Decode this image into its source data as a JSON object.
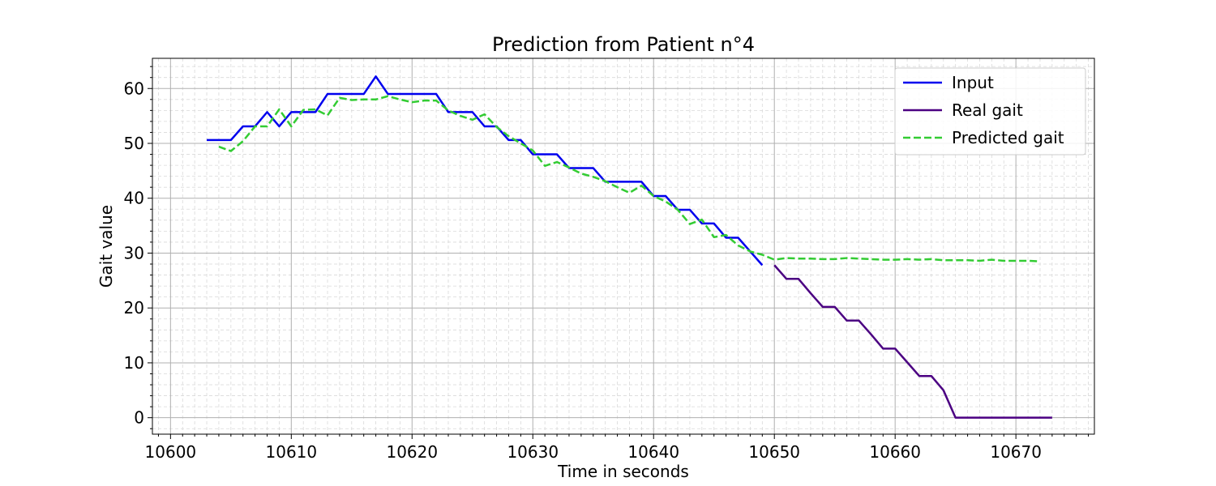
{
  "chart_data": {
    "type": "line",
    "title": "Prediction from Patient n°4",
    "xlabel": "Time in seconds",
    "ylabel": "Gait value",
    "xlim": [
      10598.5,
      10676.5
    ],
    "ylim": [
      -3,
      65.5
    ],
    "xticks": [
      10600,
      10610,
      10620,
      10630,
      10640,
      10650,
      10660,
      10670
    ],
    "yticks": [
      0,
      10,
      20,
      30,
      40,
      50,
      60
    ],
    "x_minor_step": 1,
    "y_minor_step": 2,
    "grid": true,
    "legend_position": "top-right",
    "series": [
      {
        "name": "Input",
        "color": "#0000ee",
        "style": "solid",
        "x": [
          10603,
          10604,
          10605,
          10606,
          10607,
          10608,
          10609,
          10610,
          10611,
          10612,
          10613,
          10614,
          10615,
          10616,
          10617,
          10618,
          10619,
          10620,
          10621,
          10622,
          10623,
          10624,
          10625,
          10626,
          10627,
          10628,
          10629,
          10630,
          10631,
          10632,
          10633,
          10634,
          10635,
          10636,
          10637,
          10638,
          10639,
          10640,
          10641,
          10642,
          10643,
          10644,
          10645,
          10646,
          10647,
          10648,
          10649
        ],
        "y": [
          50.6,
          50.6,
          50.6,
          53.1,
          53.1,
          55.7,
          53.1,
          55.7,
          55.7,
          55.7,
          59.0,
          59.0,
          59.0,
          59.0,
          62.2,
          59.0,
          59.0,
          59.0,
          59.0,
          59.0,
          55.7,
          55.7,
          55.7,
          53.1,
          53.1,
          50.6,
          50.6,
          48.0,
          48.0,
          48.0,
          45.5,
          45.5,
          45.5,
          43.0,
          43.0,
          43.0,
          43.0,
          40.4,
          40.4,
          37.9,
          37.9,
          35.4,
          35.4,
          32.8,
          32.8,
          30.3,
          27.8
        ]
      },
      {
        "name": "Real gait",
        "color": "#4b0082",
        "style": "solid",
        "x": [
          10650,
          10651,
          10652,
          10653,
          10654,
          10655,
          10656,
          10657,
          10658,
          10659,
          10660,
          10661,
          10662,
          10663,
          10664,
          10665,
          10666,
          10667,
          10668,
          10669,
          10670,
          10671,
          10672,
          10673
        ],
        "y": [
          27.8,
          25.3,
          25.3,
          22.7,
          20.2,
          20.2,
          17.7,
          17.7,
          15.2,
          12.6,
          12.6,
          10.1,
          7.6,
          7.6,
          5.0,
          0,
          0,
          0,
          0,
          0,
          0,
          0,
          0,
          0
        ]
      },
      {
        "name": "Predicted gait",
        "color": "#33cc33",
        "style": "dashed",
        "x": [
          10604,
          10605,
          10606,
          10607,
          10608,
          10609,
          10610,
          10611,
          10612,
          10613,
          10614,
          10615,
          10616,
          10617,
          10618,
          10619,
          10620,
          10621,
          10622,
          10623,
          10624,
          10625,
          10626,
          10627,
          10628,
          10629,
          10630,
          10631,
          10632,
          10633,
          10634,
          10635,
          10636,
          10637,
          10638,
          10639,
          10640,
          10641,
          10642,
          10643,
          10644,
          10645,
          10646,
          10647,
          10648,
          10649,
          10650,
          10651,
          10652,
          10653,
          10654,
          10655,
          10656,
          10657,
          10658,
          10659,
          10660,
          10661,
          10662,
          10663,
          10664,
          10665,
          10666,
          10667,
          10668,
          10669,
          10670,
          10671,
          10672
        ],
        "y": [
          49.4,
          48.6,
          50.4,
          53.1,
          53.1,
          56.2,
          53.1,
          56.1,
          56.2,
          55.1,
          58.3,
          57.9,
          58.0,
          58.0,
          58.6,
          58.0,
          57.5,
          57.8,
          57.8,
          56.0,
          55.0,
          54.3,
          55.3,
          53.0,
          51.3,
          50.0,
          48.7,
          45.9,
          46.6,
          45.6,
          44.5,
          43.9,
          43.1,
          42.0,
          41.0,
          42.3,
          40.4,
          39.4,
          37.9,
          35.3,
          36.1,
          32.9,
          33.3,
          31.4,
          30.3,
          29.7,
          28.8,
          29.1,
          29.0,
          29.0,
          28.9,
          28.9,
          29.1,
          29.0,
          28.9,
          28.8,
          28.8,
          28.9,
          28.8,
          28.9,
          28.7,
          28.7,
          28.7,
          28.6,
          28.8,
          28.6,
          28.6,
          28.6,
          28.5
        ]
      }
    ]
  }
}
